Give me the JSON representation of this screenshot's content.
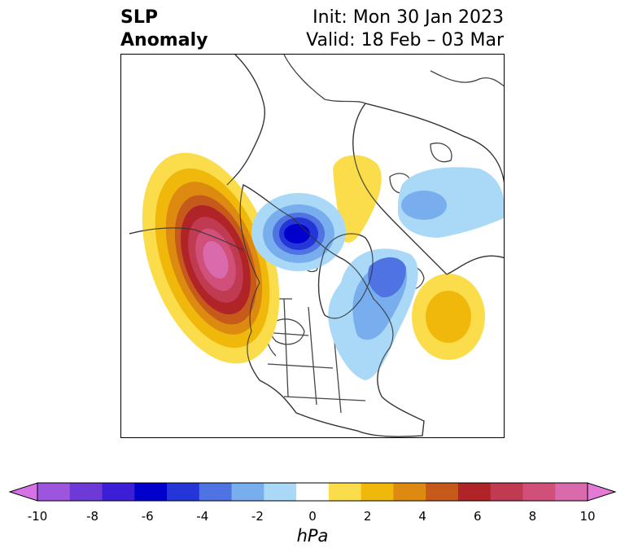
{
  "title": {
    "left_line1": "SLP",
    "left_line2": "Anomaly",
    "init": "Init: Mon 30 Jan 2023",
    "valid": "Valid: 18 Feb – 03 Mar"
  },
  "colorbar": {
    "unit": "hPa",
    "ticks": [
      "-10",
      "-8",
      "-6",
      "-4",
      "-2",
      "0",
      "2",
      "4",
      "6",
      "8",
      "10"
    ],
    "colors": [
      "#d472e6",
      "#9c55dc",
      "#6d3ad8",
      "#3b1ed6",
      "#0000cc",
      "#2436d8",
      "#4f73e2",
      "#78aeee",
      "#aad9f8",
      "#ffffff",
      "#fbdd4c",
      "#f0b80a",
      "#dd8b10",
      "#c65a1a",
      "#b02428",
      "#c03a52",
      "#d0507a",
      "#d96aac",
      "#e57ad6"
    ]
  },
  "map": {
    "anomalies": [
      {
        "label": "positive anomaly Gulf of Alaska / NE Pacific",
        "sign": "positive"
      },
      {
        "label": "positive anomaly Siberia",
        "sign": "positive"
      },
      {
        "label": "positive anomaly North Atlantic",
        "sign": "positive"
      },
      {
        "label": "negative anomaly Arctic",
        "sign": "negative"
      },
      {
        "label": "negative anomaly Greenland / North Atlantic",
        "sign": "negative"
      },
      {
        "label": "negative anomaly Eurasia",
        "sign": "negative"
      }
    ]
  }
}
